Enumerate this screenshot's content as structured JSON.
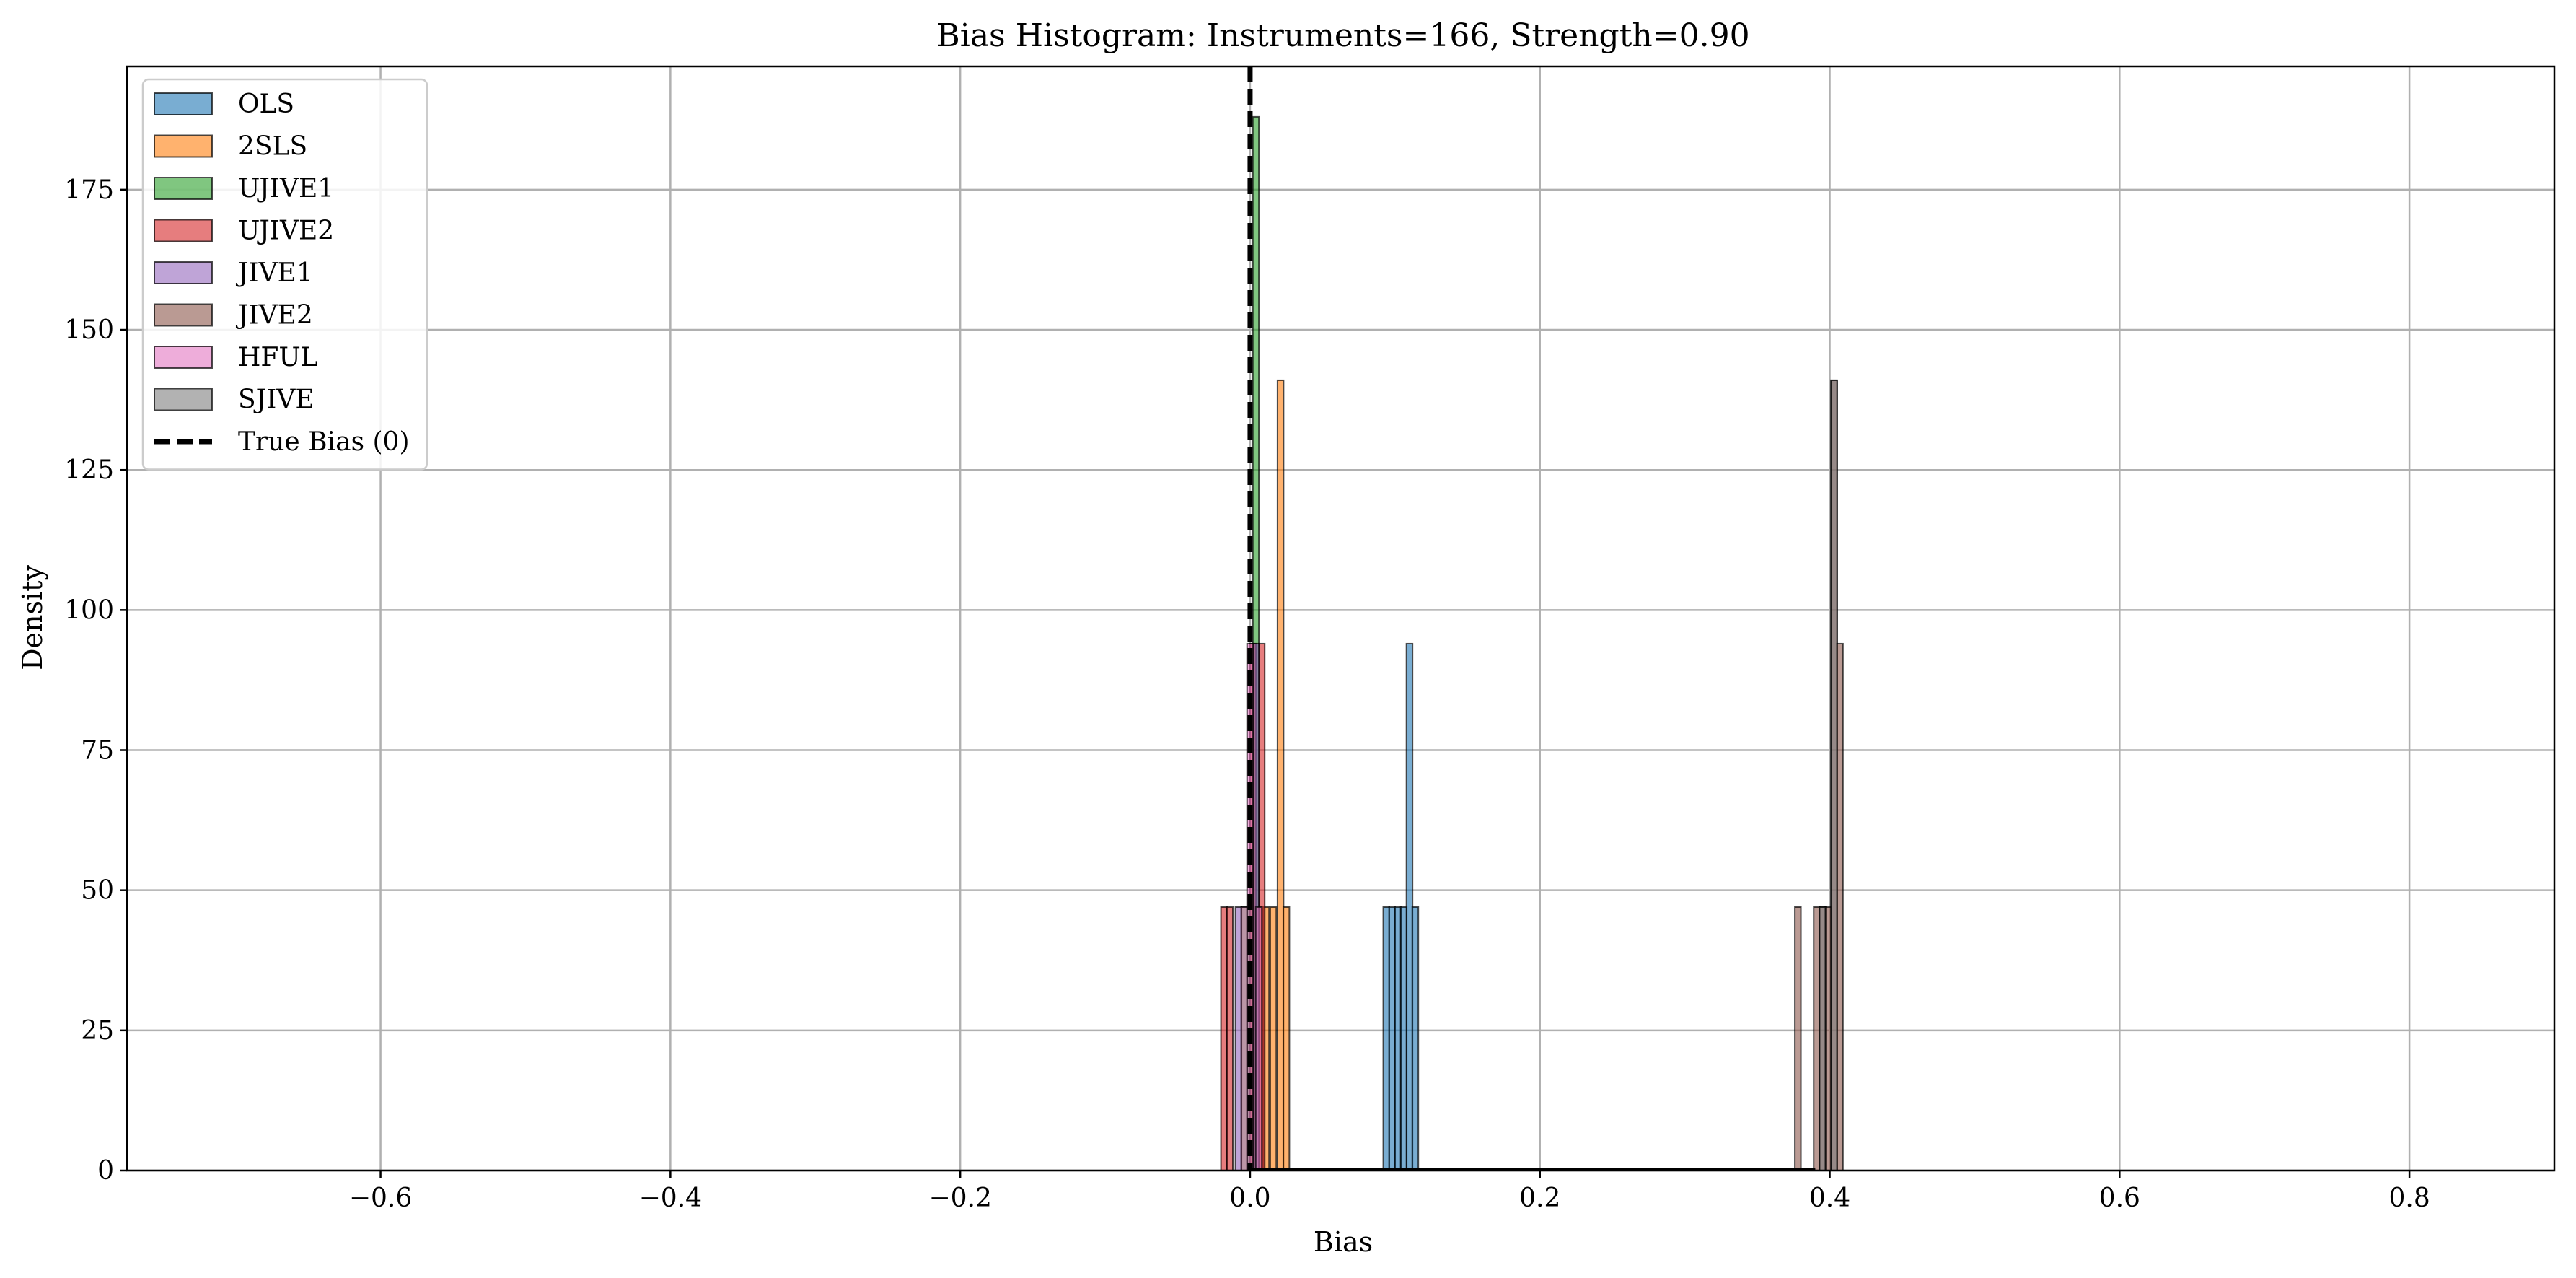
{
  "chart_data": {
    "type": "bar",
    "subtype": "histogram",
    "title": "Bias Histogram: Instruments=166, Strength=0.90",
    "xlabel": "Bias",
    "ylabel": "Density",
    "xlim": [
      -0.775,
      0.9
    ],
    "ylim": [
      0,
      197
    ],
    "xticks": [
      -0.6,
      -0.4,
      -0.2,
      0.0,
      0.2,
      0.4,
      0.6,
      0.8
    ],
    "xtick_labels": [
      "−0.6",
      "−0.4",
      "−0.2",
      "0.0",
      "0.2",
      "0.4",
      "0.6",
      "0.8"
    ],
    "yticks": [
      0,
      25,
      50,
      75,
      100,
      125,
      150,
      175
    ],
    "ytick_labels": [
      "0",
      "25",
      "50",
      "75",
      "100",
      "125",
      "150",
      "175"
    ],
    "grid": true,
    "legend_position": "top-left",
    "reference_line": {
      "label": "True Bias (0)",
      "x": 0,
      "color": "#000000",
      "style": "dashed"
    },
    "bin_width": 0.0042,
    "series": [
      {
        "name": "OLS",
        "color": "#1f77b4",
        "bins": [
          {
            "x": 0.094,
            "density": 47
          },
          {
            "x": 0.098,
            "density": 47
          },
          {
            "x": 0.102,
            "density": 47
          },
          {
            "x": 0.106,
            "density": 47
          },
          {
            "x": 0.11,
            "density": 94
          },
          {
            "x": 0.114,
            "density": 47
          }
        ]
      },
      {
        "name": "2SLS",
        "color": "#ff7f0e",
        "bins": [
          {
            "x": 0.006,
            "density": 47
          },
          {
            "x": 0.011,
            "density": 47
          },
          {
            "x": 0.016,
            "density": 47
          },
          {
            "x": 0.021,
            "density": 141
          },
          {
            "x": 0.025,
            "density": 47
          }
        ]
      },
      {
        "name": "UJIVE1",
        "color": "#2ca02c",
        "bins": [
          {
            "x": -0.004,
            "density": 47
          },
          {
            "x": 0.0,
            "density": 47
          },
          {
            "x": 0.004,
            "density": 188
          }
        ]
      },
      {
        "name": "UJIVE2",
        "color": "#d62728",
        "bins": [
          {
            "x": -0.018,
            "density": 47
          },
          {
            "x": -0.014,
            "density": 47
          },
          {
            "x": 0.002,
            "density": 94
          },
          {
            "x": 0.008,
            "density": 94
          }
        ]
      },
      {
        "name": "JIVE1",
        "color": "#9467bd",
        "bins": [
          {
            "x": -0.008,
            "density": 47
          },
          {
            "x": 0.004,
            "density": 94
          }
        ]
      },
      {
        "name": "JIVE2",
        "color": "#8c564b",
        "bins": [
          {
            "x": 0.378,
            "density": 47
          },
          {
            "x": 0.391,
            "density": 47
          },
          {
            "x": 0.395,
            "density": 47
          },
          {
            "x": 0.399,
            "density": 47
          },
          {
            "x": 0.403,
            "density": 141
          },
          {
            "x": 0.407,
            "density": 94
          }
        ]
      },
      {
        "name": "HFUL",
        "color": "#e377c2",
        "bins": [
          {
            "x": -0.004,
            "density": 47
          },
          {
            "x": 0.0,
            "density": 94
          },
          {
            "x": 0.006,
            "density": 47
          }
        ]
      },
      {
        "name": "SJIVE",
        "color": "#7f7f7f",
        "bins": [
          {
            "x": 0.395,
            "density": 47
          },
          {
            "x": 0.403,
            "density": 141
          }
        ]
      }
    ]
  }
}
